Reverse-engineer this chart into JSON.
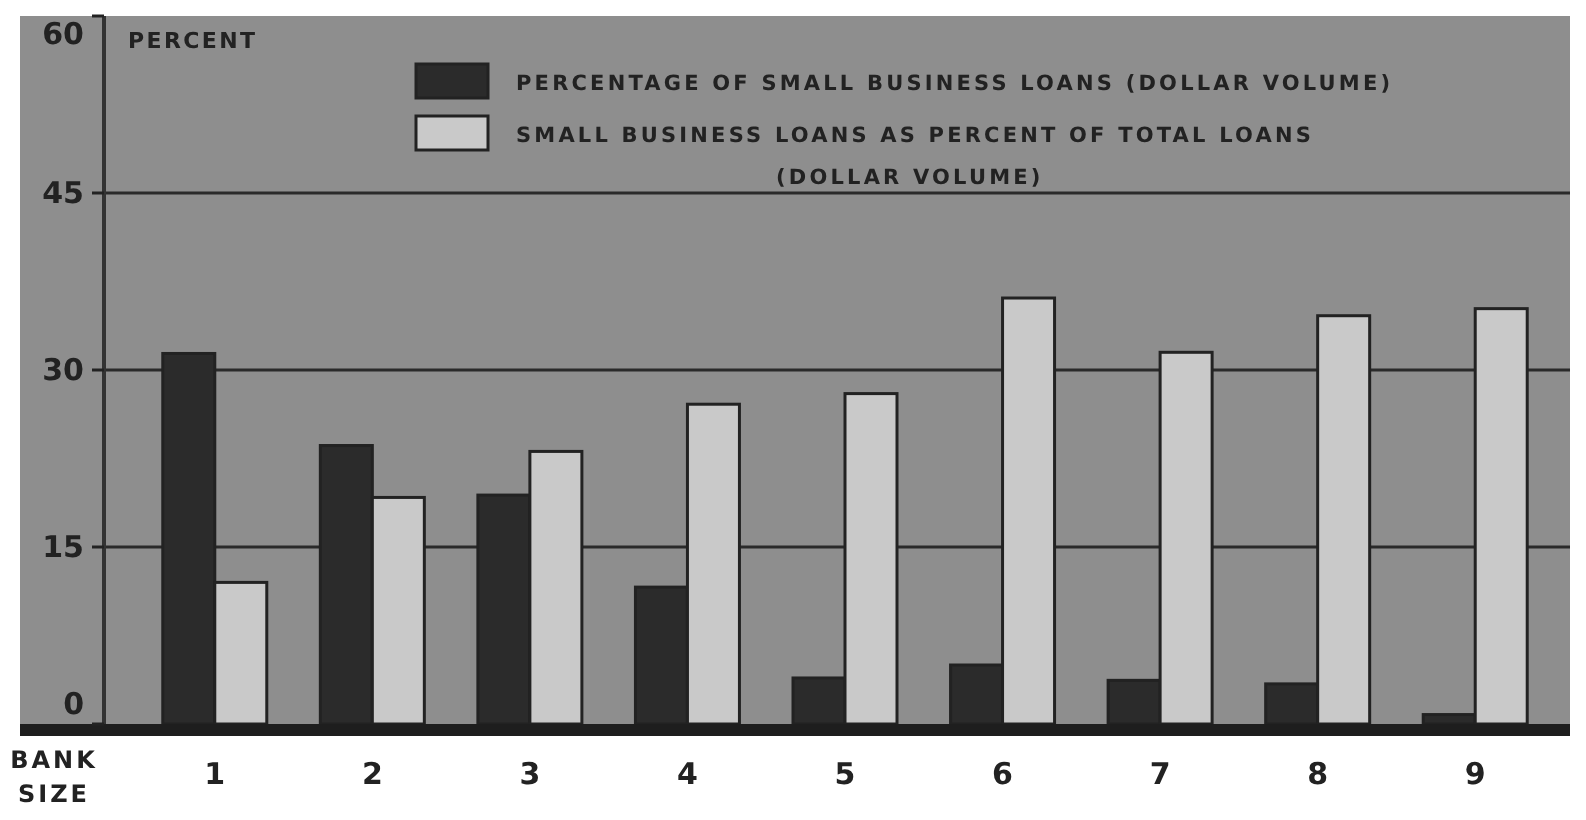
{
  "chart_data": {
    "type": "bar",
    "categories": [
      "1",
      "2",
      "3",
      "4",
      "5",
      "6",
      "7",
      "8",
      "9"
    ],
    "xlabel": "BANK SIZE",
    "ylabel": "PERCENT",
    "series": [
      {
        "name": "PERCENTAGE OF SMALL BUSINESS LOANS (DOLLAR VOLUME)",
        "color": "#2b2b2b",
        "values": [
          31.4,
          23.6,
          19.4,
          11.6,
          3.9,
          5.0,
          3.7,
          3.4,
          0.8
        ]
      },
      {
        "name": "SMALL BUSINESS LOANS AS PERCENT OF TOTAL LOANS (DOLLAR VOLUME)",
        "color": "#c9c9c9",
        "values": [
          12.0,
          19.2,
          23.1,
          27.1,
          28.0,
          36.1,
          31.5,
          34.6,
          35.2
        ]
      }
    ],
    "ylim": [
      0,
      60
    ],
    "yticks": [
      0,
      15,
      30,
      45,
      60
    ],
    "grid": "y",
    "legend": "top"
  }
}
